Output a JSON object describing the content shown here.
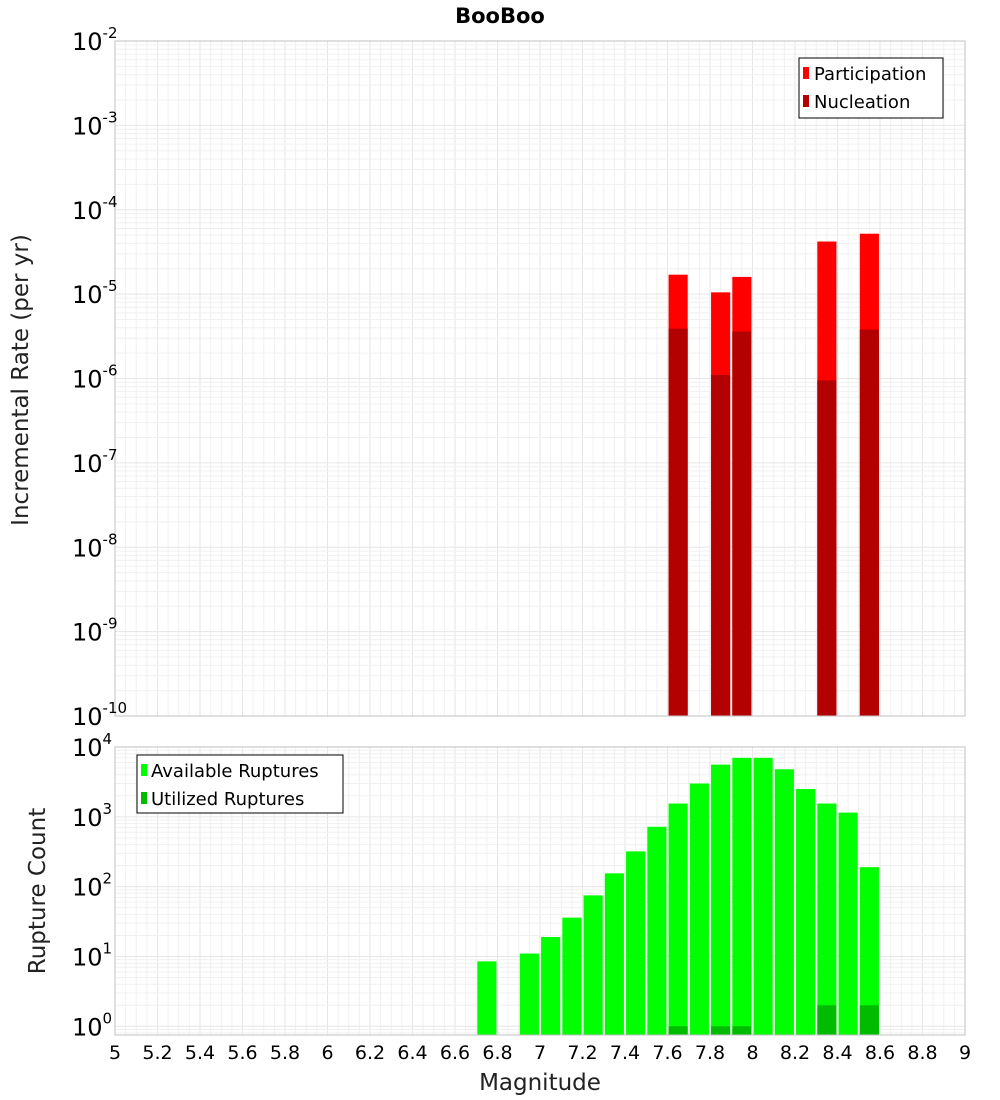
{
  "chart_data": [
    {
      "type": "bar",
      "title": "BooBoo",
      "ylabel": "Incremental Rate (per yr)",
      "xlabel": "",
      "xlim": [
        5,
        9
      ],
      "ylim": [
        1e-10,
        0.01
      ],
      "yscale": "log",
      "y_exponents": [
        -10,
        -9,
        -8,
        -7,
        -6,
        -5,
        -4,
        -3,
        -2
      ],
      "bar_width": 0.09,
      "legend": "top-right",
      "grid": true,
      "series": [
        {
          "name": "Participation",
          "color": "#ff0000",
          "x": [
            7.65,
            7.85,
            7.95,
            8.35,
            8.55
          ],
          "values": [
            1.7e-05,
            1.05e-05,
            1.6e-05,
            4.2e-05,
            5.2e-05
          ]
        },
        {
          "name": "Nucleation",
          "color": "#b30000",
          "x": [
            7.65,
            7.85,
            7.95,
            8.35,
            8.55
          ],
          "values": [
            3.9e-06,
            1.1e-06,
            3.6e-06,
            9.5e-07,
            3.8e-06
          ]
        }
      ]
    },
    {
      "type": "bar",
      "title": "",
      "ylabel": "Rupture Count",
      "xlabel": "Magnitude",
      "xlim": [
        5,
        9
      ],
      "ylim": [
        0.75,
        10000
      ],
      "yscale": "log",
      "y_exponents": [
        0,
        1,
        2,
        3,
        4
      ],
      "x_ticks": [
        "5",
        "5.2",
        "5.4",
        "5.6",
        "5.8",
        "6",
        "6.2",
        "6.4",
        "6.6",
        "6.8",
        "7",
        "7.2",
        "7.4",
        "7.6",
        "7.8",
        "8",
        "8.2",
        "8.4",
        "8.6",
        "8.8",
        "9"
      ],
      "bar_width": 0.09,
      "legend": "top-left",
      "grid": true,
      "series": [
        {
          "name": "Available Ruptures",
          "color": "#00ff00",
          "x": [
            6.75,
            6.95,
            7.05,
            7.15,
            7.25,
            7.35,
            7.45,
            7.55,
            7.65,
            7.75,
            7.85,
            7.95,
            8.05,
            8.15,
            8.25,
            8.35,
            8.45,
            8.55
          ],
          "values": [
            8.5,
            11,
            19,
            36,
            75,
            155,
            320,
            720,
            1550,
            3000,
            5600,
            7000,
            7000,
            4800,
            2500,
            1550,
            1150,
            190
          ]
        },
        {
          "name": "Utilized Ruptures",
          "color": "#00bb00",
          "x": [
            7.65,
            7.85,
            7.95,
            8.35,
            8.55
          ],
          "values": [
            1,
            1,
            1,
            2,
            2
          ]
        }
      ]
    }
  ]
}
